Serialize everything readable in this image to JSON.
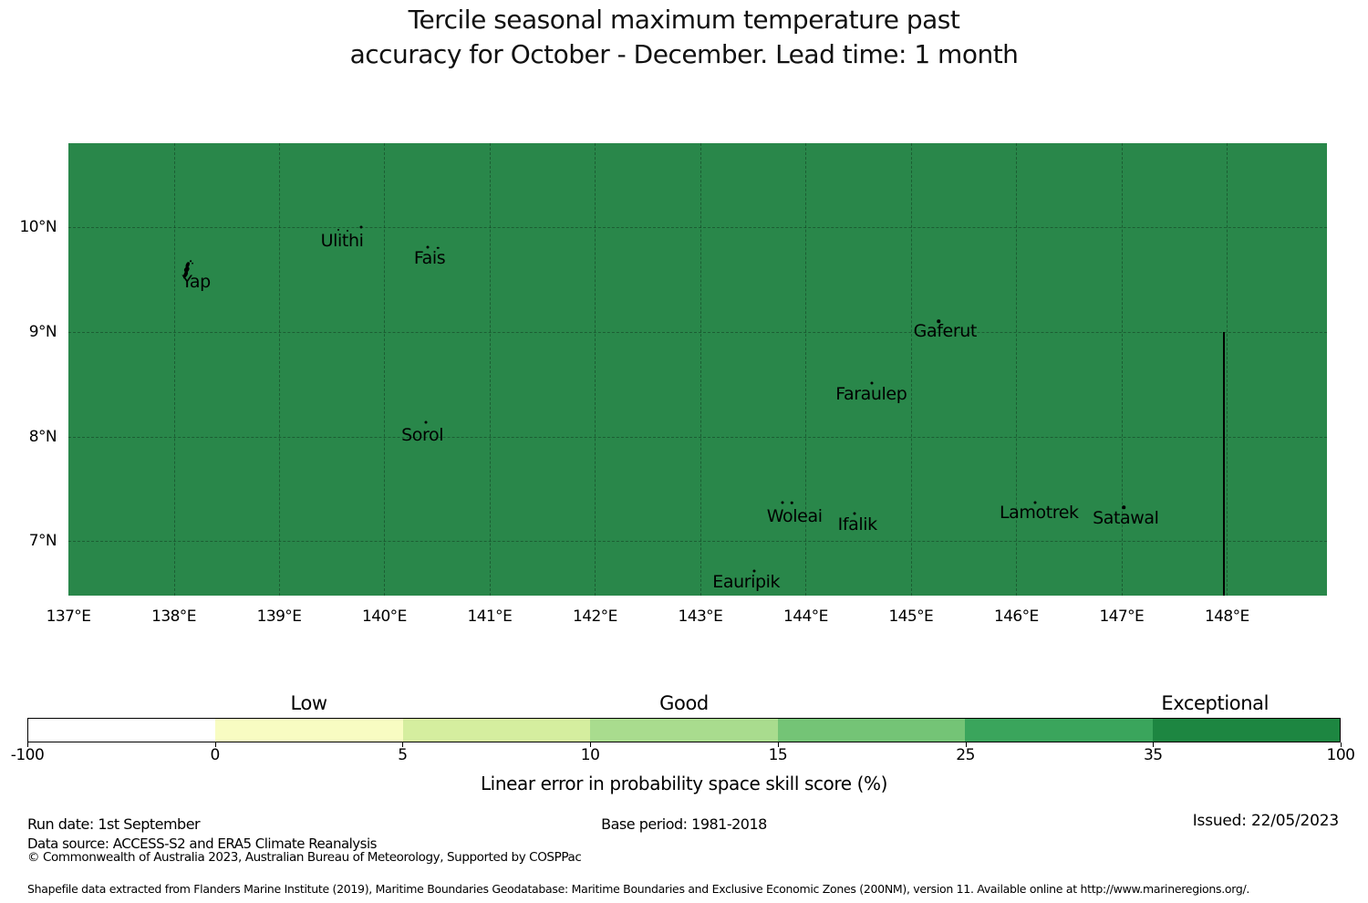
{
  "title": {
    "line1": "Tercile seasonal maximum temperature past",
    "line2": "accuracy for October - December. Lead time: 1 month"
  },
  "footer": {
    "run_date": "Run date: 1st September",
    "base_period": "Base period: 1981-2018",
    "issued": "Issued: 22/05/2023",
    "data_source": "Data source: ACCESS-S2 and ERA5 Climate Reanalysis",
    "copyright": "© Commonwealth of Australia 2023, Australian Bureau of Meteorology, Supported by COSPPac",
    "shapefile_note": "Shapefile data extracted from Flanders Marine Institute (2019), Maritime Boundaries Geodatabase: Maritime Boundaries and Exclusive Economic Zones (200NM), version 11. Available online at http://www.marineregions.org/."
  },
  "chart_data": {
    "type": "heatmap",
    "title": "Tercile seasonal maximum temperature past accuracy for October - December. Lead time: 1 month",
    "xlabel": "",
    "ylabel": "",
    "grid": true,
    "region_fill_color": "#29874a",
    "extent": {
      "lon_min": 137,
      "lon_max": 148.95,
      "lat_min": 6.48,
      "lat_max": 10.8
    },
    "x_ticks": [
      {
        "label": "137°E",
        "lon": 137
      },
      {
        "label": "138°E",
        "lon": 138
      },
      {
        "label": "139°E",
        "lon": 139
      },
      {
        "label": "140°E",
        "lon": 140
      },
      {
        "label": "141°E",
        "lon": 141
      },
      {
        "label": "142°E",
        "lon": 142
      },
      {
        "label": "143°E",
        "lon": 143
      },
      {
        "label": "144°E",
        "lon": 144
      },
      {
        "label": "145°E",
        "lon": 145
      },
      {
        "label": "146°E",
        "lon": 146
      },
      {
        "label": "147°E",
        "lon": 147
      },
      {
        "label": "148°E",
        "lon": 148
      }
    ],
    "y_ticks": [
      {
        "label": "10°N",
        "lat": 10
      },
      {
        "label": "9°N",
        "lat": 9
      },
      {
        "label": "8°N",
        "lat": 8
      },
      {
        "label": "7°N",
        "lat": 7
      }
    ],
    "islands": [
      {
        "name": "Yap",
        "label_lon": 138.213,
        "label_lat": 9.477,
        "shape": "yap",
        "shape_lon": 138.126,
        "shape_lat": 9.573,
        "dots": []
      },
      {
        "name": "Ulithi",
        "label_lon": 139.599,
        "label_lat": 9.869,
        "dots": [
          [
            139.564,
            9.974,
            2
          ],
          [
            139.651,
            9.965,
            2
          ],
          [
            139.78,
            10.0,
            3
          ]
        ]
      },
      {
        "name": "Fais",
        "label_lon": 140.43,
        "label_lat": 9.703,
        "dots": [
          [
            140.413,
            9.808,
            3
          ],
          [
            140.508,
            9.799,
            2.5
          ]
        ]
      },
      {
        "name": "Sorol",
        "label_lon": 140.361,
        "label_lat": 8.012,
        "dots": [
          [
            140.395,
            8.134,
            3
          ]
        ]
      },
      {
        "name": "Gaferut",
        "label_lon": 145.324,
        "label_lat": 9.006,
        "dots": [
          [
            145.263,
            9.102,
            3.5
          ]
        ]
      },
      {
        "name": "Faraulep",
        "label_lon": 144.623,
        "label_lat": 8.404,
        "dots": [
          [
            144.631,
            8.509,
            3
          ]
        ]
      },
      {
        "name": "Woleai",
        "label_lon": 143.895,
        "label_lat": 7.236,
        "dots": [
          [
            143.782,
            7.367,
            3
          ],
          [
            143.869,
            7.367,
            2.5
          ]
        ]
      },
      {
        "name": "Ifalik",
        "label_lon": 144.492,
        "label_lat": 7.157,
        "dots": [
          [
            144.466,
            7.262,
            3
          ]
        ]
      },
      {
        "name": "Lamotrek",
        "label_lon": 146.216,
        "label_lat": 7.271,
        "dots": [
          [
            146.182,
            7.367,
            3
          ]
        ]
      },
      {
        "name": "Satawal",
        "label_lon": 147.039,
        "label_lat": 7.219,
        "dots": [
          [
            147.022,
            7.323,
            3.5
          ]
        ]
      },
      {
        "name": "Eauripik",
        "label_lon": 143.436,
        "label_lat": 6.608,
        "dots": [
          [
            143.514,
            6.713,
            3
          ]
        ]
      }
    ],
    "eez_boundary": {
      "lon": 147.974,
      "lat_from": 9.0,
      "lat_to": 6.48
    },
    "colorbar": {
      "label": "Linear error in probability space skill score (%)",
      "boundaries": [
        -100,
        0,
        5,
        10,
        15,
        25,
        35,
        100
      ],
      "boundary_labels": [
        "-100",
        "0",
        "5",
        "10",
        "15",
        "25",
        "35",
        "100"
      ],
      "colors": [
        "#ffffff",
        "#f8fcc2",
        "#d5ee9f",
        "#a9dc8e",
        "#74c476",
        "#3aa55c",
        "#1d8641"
      ],
      "categories": [
        {
          "label": "Low",
          "seg_center": 1.5
        },
        {
          "label": "Good",
          "seg_center": 3.5
        },
        {
          "label": "Exceptional",
          "seg_center": 6.33
        }
      ]
    }
  }
}
